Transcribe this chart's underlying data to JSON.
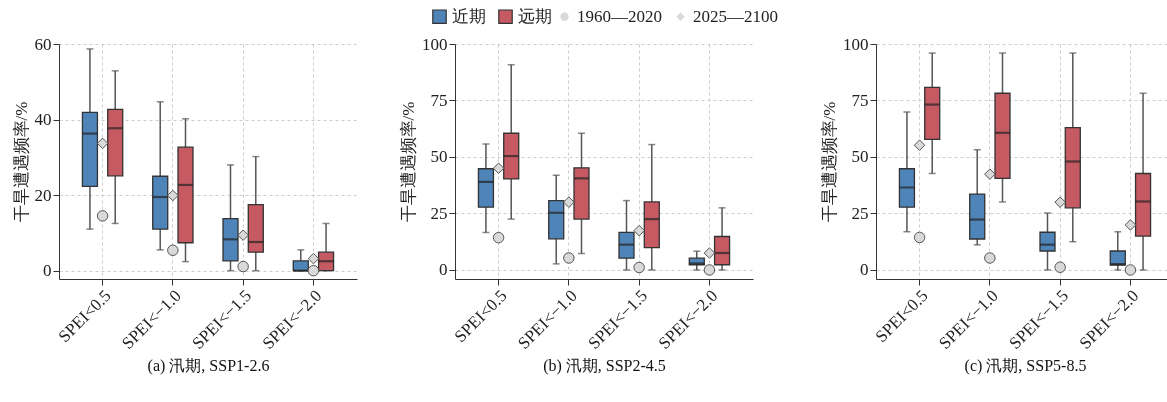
{
  "chart_data": [
    {
      "type": "box",
      "xlabel": "(a) 汛期, SSP1-2.6",
      "ylabel": "干旱遭遇频率/%",
      "categories": [
        "SPEI<0.5",
        "SPEI<−1.0",
        "SPEI<−1.5",
        "SPEI<−2.0"
      ],
      "ylim": [
        -2.2,
        60
      ],
      "yticks": [
        0,
        20,
        40,
        60
      ],
      "grid": true,
      "series": [
        {
          "color": "#4f84b8",
          "boxes": [
            {
              "low": 11,
              "q1": 22.3,
              "median": 36.3,
              "q3": 41.9,
              "high": 58.7
            },
            {
              "low": 5.5,
              "q1": 11,
              "median": 19.5,
              "q3": 25,
              "high": 44.7
            },
            {
              "low": 0,
              "q1": 2.6,
              "median": 8.3,
              "q3": 13.8,
              "high": 28
            },
            {
              "low": 0,
              "q1": 0,
              "median": 0,
              "q3": 2.6,
              "high": 5.5
            }
          ]
        },
        {
          "color": "#c65a63",
          "boxes": [
            {
              "low": 12.5,
              "q1": 25.1,
              "median": 37.7,
              "q3": 42.7,
              "high": 52.9
            },
            {
              "low": 2.4,
              "q1": 7.4,
              "median": 22.7,
              "q3": 32.7,
              "high": 40.2
            },
            {
              "low": 0,
              "q1": 4.9,
              "median": 7.6,
              "q3": 17.5,
              "high": 30.2
            },
            {
              "low": 0,
              "q1": 0,
              "median": 2.5,
              "q3": 4.9,
              "high": 12.5
            }
          ]
        },
        {
          "type": "scatter",
          "marker": "circle",
          "color": "#d9d9d9",
          "x": [
            "SPEI<0.5",
            "SPEI<−1.0",
            "SPEI<−1.5",
            "SPEI<−2.0"
          ],
          "values": [
            14.5,
            5.4,
            1.1,
            0
          ]
        },
        {
          "type": "scatter",
          "marker": "diamond",
          "color": "#d9d9d9",
          "x": [
            "SPEI<0.5",
            "SPEI<−1.0",
            "SPEI<−1.5",
            "SPEI<−2.0"
          ],
          "values": [
            33.7,
            19.9,
            9.4,
            3.2
          ]
        }
      ]
    },
    {
      "type": "box",
      "xlabel": "(b) 汛期, SSP2-4.5",
      "ylabel": "干旱遭遇频率/%",
      "categories": [
        "SPEI<0.5",
        "SPEI<−1.0",
        "SPEI<−1.5",
        "SPEI<−2.0"
      ],
      "ylim": [
        -4,
        100
      ],
      "yticks": [
        0,
        25,
        50,
        75,
        100
      ],
      "grid": true,
      "legend": "top",
      "series": [
        {
          "name": "近期",
          "color": "#4f84b8",
          "boxes": [
            {
              "low": 16.6,
              "q1": 27.8,
              "median": 39,
              "q3": 44.8,
              "high": 55.8
            },
            {
              "low": 2.7,
              "q1": 13.8,
              "median": 25.3,
              "q3": 30.7,
              "high": 41.9
            },
            {
              "low": 0,
              "q1": 5.2,
              "median": 11.2,
              "q3": 16.6,
              "high": 30.7
            },
            {
              "low": 0,
              "q1": 2.3,
              "median": 2.9,
              "q3": 5.2,
              "high": 8.3
            }
          ]
        },
        {
          "name": "远期",
          "color": "#c65a63",
          "boxes": [
            {
              "low": 22.5,
              "q1": 40.3,
              "median": 50.4,
              "q3": 60.5,
              "high": 90.8
            },
            {
              "low": 7.3,
              "q1": 22.5,
              "median": 40.5,
              "q3": 45.2,
              "high": 60.5
            },
            {
              "low": 0,
              "q1": 9.9,
              "median": 22.5,
              "q3": 30.1,
              "high": 55.5
            },
            {
              "low": 0,
              "q1": 2.3,
              "median": 7.5,
              "q3": 14.8,
              "high": 27.5
            }
          ]
        },
        {
          "name": "1960—2020",
          "type": "scatter",
          "marker": "circle",
          "color": "#d9d9d9",
          "x": [
            "SPEI<0.5",
            "SPEI<−1.0",
            "SPEI<−1.5",
            "SPEI<−2.0"
          ],
          "values": [
            14.3,
            5.3,
            1.1,
            0
          ]
        },
        {
          "name": "2025—2100",
          "type": "scatter",
          "marker": "diamond",
          "color": "#d9d9d9",
          "x": [
            "SPEI<0.5",
            "SPEI<−1.0",
            "SPEI<−1.5",
            "SPEI<−2.0"
          ],
          "values": [
            45,
            30,
            17.4,
            7.5
          ]
        }
      ]
    },
    {
      "type": "box",
      "xlabel": "(c) 汛期, SSP5-8.5",
      "ylabel": "干旱遭遇频率/%",
      "categories": [
        "SPEI<0.5",
        "SPEI<−1.0",
        "SPEI<−1.5",
        "SPEI<−2.0"
      ],
      "ylim": [
        -4,
        100
      ],
      "yticks": [
        0,
        25,
        50,
        75,
        100
      ],
      "grid": true,
      "series": [
        {
          "color": "#4f84b8",
          "boxes": [
            {
              "low": 16.9,
              "q1": 27.8,
              "median": 36.5,
              "q3": 44.8,
              "high": 69.9
            },
            {
              "low": 11.1,
              "q1": 13.7,
              "median": 22.3,
              "q3": 33.6,
              "high": 53.2
            },
            {
              "low": 0,
              "q1": 8.4,
              "median": 11.2,
              "q3": 16.7,
              "high": 25.2
            },
            {
              "low": 0,
              "q1": 2.2,
              "median": 2.6,
              "q3": 8.4,
              "high": 16.9
            }
          ]
        },
        {
          "color": "#c65a63",
          "boxes": [
            {
              "low": 42.7,
              "q1": 57.8,
              "median": 73.2,
              "q3": 80.8,
              "high": 96
            },
            {
              "low": 30.1,
              "q1": 40.5,
              "median": 60.7,
              "q3": 78.2,
              "high": 96
            },
            {
              "low": 12.5,
              "q1": 27.5,
              "median": 48,
              "q3": 63,
              "high": 96
            },
            {
              "low": 0,
              "q1": 15,
              "median": 30.3,
              "q3": 42.7,
              "high": 78.2
            }
          ]
        },
        {
          "type": "scatter",
          "marker": "circle",
          "color": "#d9d9d9",
          "x": [
            "SPEI<0.5",
            "SPEI<−1.0",
            "SPEI<−1.5",
            "SPEI<−2.0"
          ],
          "values": [
            14.4,
            5.3,
            1.2,
            0
          ]
        },
        {
          "type": "scatter",
          "marker": "diamond",
          "color": "#d9d9d9",
          "x": [
            "SPEI<0.5",
            "SPEI<−1.0",
            "SPEI<−1.5",
            "SPEI<−2.0"
          ],
          "values": [
            55.2,
            42.4,
            30,
            19.9
          ]
        }
      ]
    }
  ]
}
